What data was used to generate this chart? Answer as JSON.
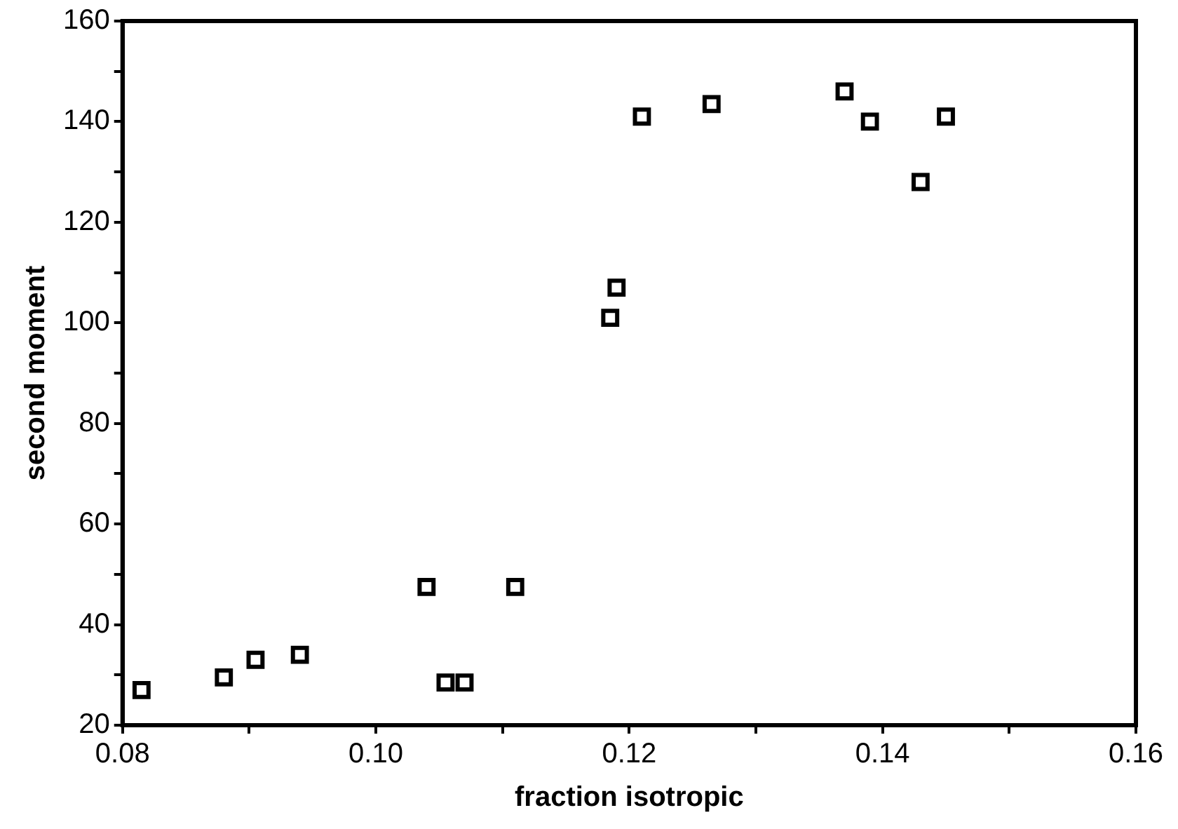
{
  "chart_data": {
    "type": "scatter",
    "xlabel": "fraction isotropic",
    "ylabel": "second moment",
    "marker": "square",
    "xlim": [
      0.08,
      0.16
    ],
    "ylim": [
      20,
      160
    ],
    "xticks": [
      {
        "value": 0.08,
        "label": "0.08"
      },
      {
        "value": 0.09,
        "label": null
      },
      {
        "value": 0.1,
        "label": "0.10"
      },
      {
        "value": 0.11,
        "label": null
      },
      {
        "value": 0.12,
        "label": "0.12"
      },
      {
        "value": 0.13,
        "label": null
      },
      {
        "value": 0.14,
        "label": "0.14"
      },
      {
        "value": 0.15,
        "label": null
      },
      {
        "value": 0.16,
        "label": "0.16"
      }
    ],
    "yticks": [
      20,
      {
        "value": 30,
        "label": null
      },
      40,
      {
        "value": 50,
        "label": null
      },
      60,
      {
        "value": 70,
        "label": null
      },
      80,
      {
        "value": 90,
        "label": null
      },
      100,
      {
        "value": 110,
        "label": null
      },
      120,
      {
        "value": 130,
        "label": null
      },
      140,
      {
        "value": 150,
        "label": null
      },
      160
    ],
    "series": [
      {
        "color": "#000000",
        "x": [
          0.0815,
          0.088,
          0.0905,
          0.094,
          0.104,
          0.1055,
          0.107,
          0.111,
          0.1185,
          0.119,
          0.121,
          0.1265,
          0.137,
          0.139,
          0.143,
          0.145
        ],
        "values": [
          27,
          29.5,
          33,
          34,
          47.5,
          28.5,
          28.5,
          47.5,
          101,
          107,
          141,
          143.5,
          146,
          140,
          128,
          141
        ]
      }
    ]
  }
}
